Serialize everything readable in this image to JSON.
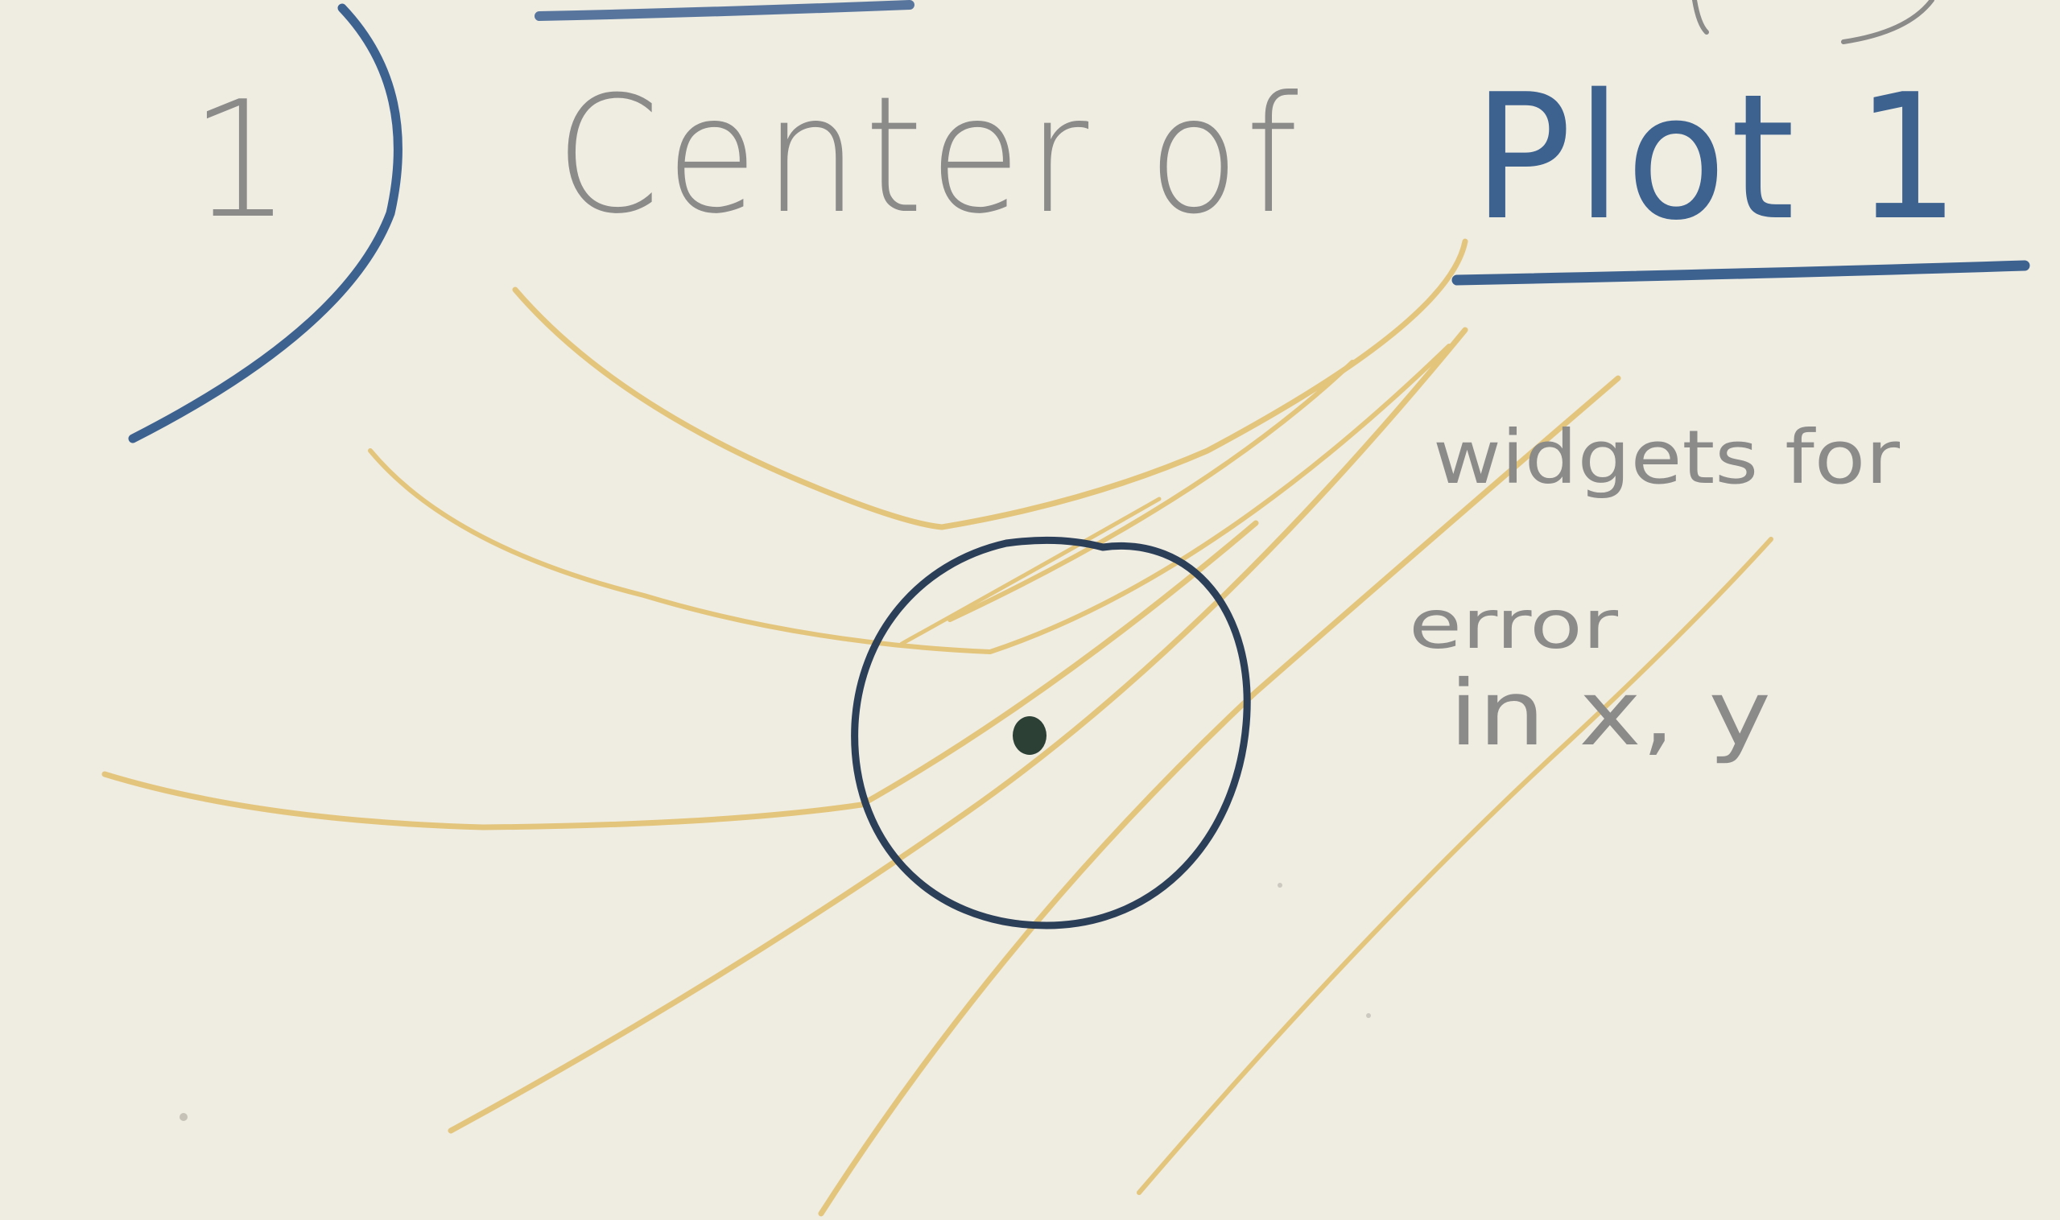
{
  "heading": {
    "number": "1",
    "text": "Center of",
    "emphasis": "Plot 1"
  },
  "annotation": {
    "line1": "widgets for",
    "line2": "error",
    "line3": "in  x, y"
  },
  "colors": {
    "paper": "#efece2",
    "pencil_gray": "#8b8b8a",
    "pencil_blue": "#3d6290",
    "ink_circle": "#2c3f58",
    "pencil_yellow": "#e3c377"
  }
}
